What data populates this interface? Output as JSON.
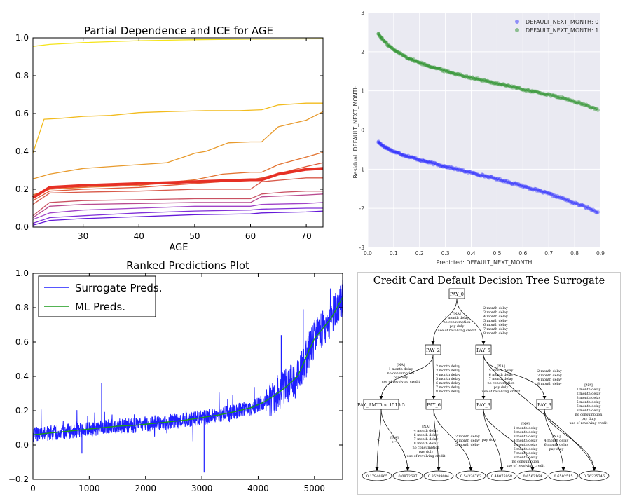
{
  "chart_data": [
    {
      "type": "line",
      "title": "Partial Dependence and ICE for AGE",
      "xlabel": "AGE",
      "ylabel": "",
      "xlim": [
        21,
        73
      ],
      "ylim": [
        0,
        1
      ],
      "xticks": [
        "30",
        "40",
        "50",
        "60",
        "70"
      ],
      "yticks": [
        "0.0",
        "0.2",
        "0.4",
        "0.6",
        "0.8",
        "1.0"
      ],
      "series": [
        {
          "color": "#f5e41a",
          "width": 1.3,
          "x": [
            21,
            24,
            30,
            40,
            50,
            60,
            73
          ],
          "y": [
            0.955,
            0.965,
            0.975,
            0.985,
            0.99,
            0.993,
            0.995
          ]
        },
        {
          "color": "#f2bb1d",
          "width": 1.3,
          "x": [
            21,
            23,
            26,
            30,
            35,
            40,
            45,
            52,
            58,
            62,
            65,
            70,
            73
          ],
          "y": [
            0.39,
            0.57,
            0.575,
            0.585,
            0.59,
            0.605,
            0.61,
            0.615,
            0.615,
            0.62,
            0.645,
            0.655,
            0.655
          ]
        },
        {
          "color": "#e89a2c",
          "width": 1.3,
          "x": [
            21,
            24,
            30,
            40,
            45,
            50,
            52,
            56,
            60,
            62,
            65,
            70,
            73
          ],
          "y": [
            0.255,
            0.28,
            0.31,
            0.33,
            0.34,
            0.39,
            0.4,
            0.445,
            0.45,
            0.45,
            0.53,
            0.565,
            0.61
          ]
        },
        {
          "color": "#e2722f",
          "width": 1.3,
          "x": [
            21,
            24,
            30,
            40,
            50,
            55,
            60,
            62,
            65,
            70,
            73
          ],
          "y": [
            0.17,
            0.2,
            0.21,
            0.22,
            0.25,
            0.28,
            0.29,
            0.29,
            0.33,
            0.37,
            0.395
          ]
        },
        {
          "color": "#e05a38",
          "width": 1.3,
          "x": [
            21,
            24,
            30,
            40,
            50,
            60,
            62,
            66,
            70,
            73
          ],
          "y": [
            0.14,
            0.19,
            0.2,
            0.21,
            0.23,
            0.25,
            0.26,
            0.29,
            0.32,
            0.34
          ]
        },
        {
          "color": "#e63025",
          "width": 4,
          "x": [
            21,
            24,
            30,
            35,
            40,
            45,
            50,
            55,
            60,
            62,
            65,
            70,
            73
          ],
          "y": [
            0.155,
            0.21,
            0.22,
            0.225,
            0.23,
            0.235,
            0.24,
            0.245,
            0.25,
            0.25,
            0.28,
            0.305,
            0.31
          ]
        },
        {
          "color": "#d85a4a",
          "width": 1.3,
          "x": [
            21,
            24,
            30,
            40,
            50,
            60,
            62,
            66,
            70,
            73
          ],
          "y": [
            0.12,
            0.18,
            0.185,
            0.19,
            0.2,
            0.2,
            0.24,
            0.25,
            0.26,
            0.26
          ]
        },
        {
          "color": "#c95061",
          "width": 1.3,
          "x": [
            21,
            24,
            30,
            40,
            50,
            60,
            62,
            66,
            70,
            73
          ],
          "y": [
            0.06,
            0.13,
            0.14,
            0.145,
            0.15,
            0.15,
            0.175,
            0.185,
            0.19,
            0.19
          ]
        },
        {
          "color": "#b84a8f",
          "width": 1.3,
          "x": [
            21,
            24,
            30,
            40,
            50,
            60,
            62,
            70,
            73
          ],
          "y": [
            0.05,
            0.11,
            0.12,
            0.125,
            0.13,
            0.13,
            0.16,
            0.17,
            0.175
          ]
        },
        {
          "color": "#a044c8",
          "width": 1.3,
          "x": [
            21,
            24,
            30,
            40,
            50,
            60,
            62,
            70,
            73
          ],
          "y": [
            0.04,
            0.075,
            0.09,
            0.1,
            0.11,
            0.11,
            0.12,
            0.125,
            0.13
          ]
        },
        {
          "color": "#8030d8",
          "width": 1.3,
          "x": [
            21,
            24,
            30,
            40,
            50,
            60,
            62,
            70,
            73
          ],
          "y": [
            0.02,
            0.05,
            0.06,
            0.075,
            0.085,
            0.09,
            0.095,
            0.1,
            0.1
          ]
        },
        {
          "color": "#6418d8",
          "width": 1.3,
          "x": [
            21,
            24,
            30,
            40,
            50,
            60,
            62,
            70,
            73
          ],
          "y": [
            0.01,
            0.035,
            0.045,
            0.055,
            0.065,
            0.07,
            0.075,
            0.08,
            0.085
          ]
        }
      ]
    },
    {
      "type": "scatter",
      "title": "",
      "xlabel": "Predicted: DEFAULT_NEXT_MONTH",
      "ylabel": "Residual: DEFAULT_NEXT_MONTH",
      "xlim": [
        0.0,
        0.9
      ],
      "ylim": [
        -3,
        3
      ],
      "xticks": [
        "0.0",
        "0.1",
        "0.2",
        "0.3",
        "0.4",
        "0.5",
        "0.6",
        "0.7",
        "0.8",
        "0.9"
      ],
      "yticks": [
        "-3",
        "-2",
        "-1",
        "0",
        "1",
        "2",
        "3"
      ],
      "legend_position": "top-right",
      "series": [
        {
          "name": "DEFAULT_NEXT_MONTH: 0",
          "color": "#1f1fff",
          "x": [
            0.04,
            0.05,
            0.07,
            0.1,
            0.15,
            0.2,
            0.25,
            0.3,
            0.35,
            0.4,
            0.45,
            0.5,
            0.55,
            0.6,
            0.65,
            0.7,
            0.75,
            0.8,
            0.85,
            0.89
          ],
          "y": [
            -0.3,
            -0.36,
            -0.45,
            -0.55,
            -0.66,
            -0.76,
            -0.85,
            -0.93,
            -1.01,
            -1.09,
            -1.17,
            -1.25,
            -1.34,
            -1.43,
            -1.53,
            -1.63,
            -1.74,
            -1.87,
            -1.98,
            -2.1
          ]
        },
        {
          "name": "DEFAULT_NEXT_MONTH: 1",
          "color": "#1a8a1a",
          "x": [
            0.04,
            0.05,
            0.07,
            0.1,
            0.15,
            0.2,
            0.25,
            0.3,
            0.35,
            0.4,
            0.45,
            0.5,
            0.55,
            0.6,
            0.65,
            0.7,
            0.75,
            0.8,
            0.85,
            0.89
          ],
          "y": [
            2.47,
            2.37,
            2.22,
            2.05,
            1.86,
            1.72,
            1.61,
            1.51,
            1.42,
            1.34,
            1.26,
            1.19,
            1.12,
            1.04,
            0.97,
            0.9,
            0.82,
            0.73,
            0.62,
            0.52
          ]
        }
      ]
    },
    {
      "type": "line",
      "title": "Ranked Predictions Plot",
      "xlabel": "",
      "ylabel": "",
      "xlim": [
        0,
        5500
      ],
      "ylim": [
        -0.2,
        1.0
      ],
      "xticks": [
        "0",
        "1000",
        "2000",
        "3000",
        "4000",
        "5000"
      ],
      "yticks": [
        "−0.2",
        "0.0",
        "0.2",
        "0.4",
        "0.6",
        "0.8",
        "1.0"
      ],
      "legend_position": "top-left",
      "series": [
        {
          "name": "Surrogate Preds.",
          "color": "#1f1fff",
          "x": [
            0,
            300,
            600,
            900,
            1200,
            1500,
            1800,
            2100,
            2400,
            2700,
            3000,
            3300,
            3600,
            3900,
            4100,
            4300,
            4500,
            4700,
            4800,
            4900,
            5000,
            5100,
            5200,
            5300,
            5400,
            5500
          ],
          "y": [
            0.06,
            0.07,
            0.08,
            0.09,
            0.1,
            0.11,
            0.115,
            0.125,
            0.135,
            0.145,
            0.16,
            0.175,
            0.195,
            0.22,
            0.25,
            0.29,
            0.34,
            0.4,
            0.47,
            0.55,
            0.62,
            0.66,
            0.7,
            0.74,
            0.8,
            0.86
          ],
          "noise": 0.045,
          "spikes": [
            [
              3040,
              -0.16
            ],
            [
              1220,
              0.36
            ],
            [
              4410,
              0.64
            ],
            [
              5500,
              0.96
            ],
            [
              870,
              -0.05
            ],
            [
              4800,
              0.79
            ]
          ]
        },
        {
          "name": "ML Preds.",
          "color": "#1a9a1a",
          "x": [
            0,
            300,
            600,
            900,
            1200,
            1500,
            1800,
            2100,
            2400,
            2700,
            3000,
            3300,
            3600,
            3900,
            4100,
            4300,
            4500,
            4700,
            4800,
            4900,
            5000,
            5100,
            5200,
            5300,
            5400,
            5500
          ],
          "y": [
            0.06,
            0.07,
            0.08,
            0.09,
            0.1,
            0.11,
            0.115,
            0.125,
            0.135,
            0.145,
            0.16,
            0.175,
            0.195,
            0.22,
            0.25,
            0.29,
            0.34,
            0.4,
            0.47,
            0.55,
            0.62,
            0.66,
            0.7,
            0.74,
            0.8,
            0.86
          ]
        }
      ]
    }
  ],
  "tree": {
    "title": "Credit Card Default Decision Tree Surrogate",
    "root": "PAY_0",
    "level1": [
      "PAY_2",
      "PAY_5"
    ],
    "level2": [
      "PAY_AMT5 < 1515.5",
      "PAY_6",
      "PAY_3",
      "PAY_3"
    ],
    "leaves": [
      "0.17946965",
      "0.0872687",
      "0.35289004",
      "0.54326763",
      "0.44075958",
      "0.6563164",
      "0.6502515",
      "0.76225746"
    ],
    "edge_labels": {
      "root_left": [
        "[NA]",
        "1 month delay",
        "no consumption",
        "pay duly",
        "use of revolving credit"
      ],
      "root_right": [
        "2 month delay",
        "3 month delay",
        "4 month delay",
        "5 month delay",
        "6 month delay",
        "7 month delay",
        "8 month delay"
      ],
      "pay2_left": [
        "[NA]",
        "1 month delay",
        "no consumption",
        "pay duly",
        "use of revolving credit"
      ],
      "pay2_right": [
        "2 month delay",
        "3 month delay",
        "4 month delay",
        "5 month delay",
        "6 month delay",
        "7 month delay",
        "8 month delay"
      ],
      "pay5_left": [
        "[NA]",
        "5 month delay",
        "6 month delay",
        "7 month delay",
        "no consumption",
        "pay duly",
        "use of revolving credit"
      ],
      "pay5_right": [
        "2 month delay",
        "3 month delay",
        "4 month delay",
        "8 month delay"
      ],
      "pay5_far": [
        "[NA]",
        "1 month delay",
        "2 month delay",
        "3 month delay",
        "5 month delay",
        "6 month delay",
        "8 month delay",
        "no consumption",
        "pay duly",
        "use of revolving credit"
      ],
      "amt_left": [
        "<"
      ],
      "amt_right": [
        "[NA]",
        ">="
      ],
      "pay6_left": [
        "[NA]",
        "4 month delay",
        "6 month delay",
        "7 month delay",
        "8 month delay",
        "no consumption",
        "pay duly",
        "use of revolving credit"
      ],
      "pay6_right": [
        "2 month delay",
        "3 month delay",
        "5 month delay"
      ],
      "pay3a_left": [
        "pay duly"
      ],
      "pay3a_right": [
        "[NA]",
        "1 month delay",
        "2 month delay",
        "3 month delay",
        "4 month delay",
        "5 month delay",
        "6 month delay",
        "7 month delay",
        "8 month delay",
        "no consumption",
        "use of revolving credit"
      ],
      "pay3b_left": [
        "[NA]",
        "4 month delay",
        "6 month delay",
        "pay duly"
      ],
      "pay3b_right": []
    }
  }
}
